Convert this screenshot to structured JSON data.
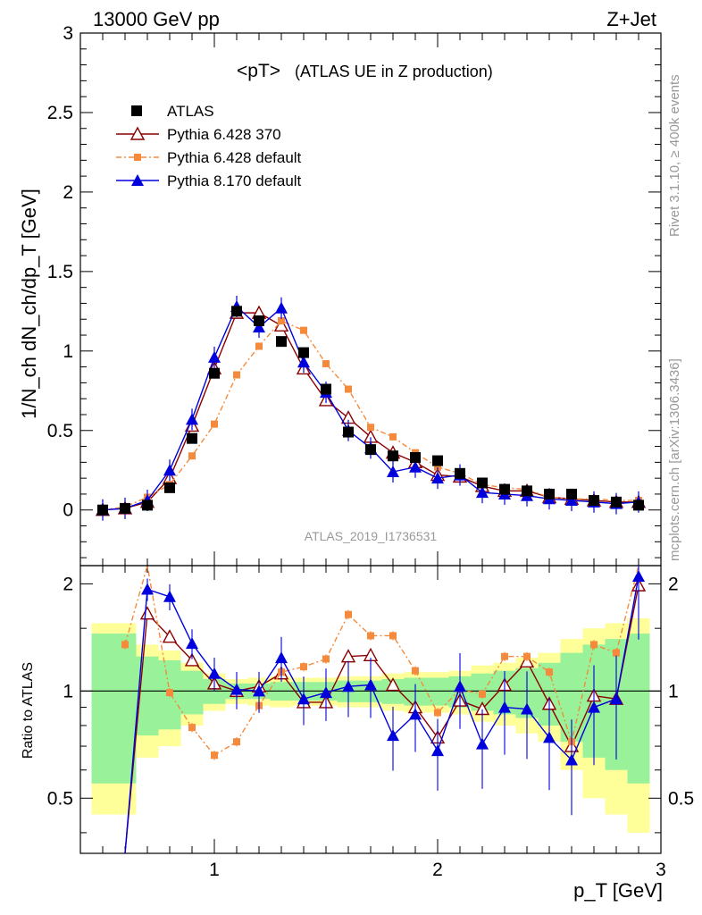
{
  "header": {
    "left": "13000 GeV pp",
    "right": "Z+Jet"
  },
  "side_labels": {
    "rivet": "Rivet 3.1.10, ≥ 400k events",
    "mcplots": "mcplots.cern.ch [arXiv:1306.3436]"
  },
  "colors": {
    "atlas": "#000000",
    "p6_370": "#8b0000",
    "p6_def": "#f58a3c",
    "p8": "#0000dd",
    "band_green": "#99f299",
    "band_yellow": "#ffff99"
  },
  "chart_data": [
    {
      "type": "line",
      "title_main": "<pT>",
      "title_sub": "(ATLAS UE in Z production)",
      "ylabel": "1/N_ch dN_ch/dp_T [GeV]",
      "ylim": [
        -0.35,
        3.0
      ],
      "yticks": [
        0,
        0.5,
        1,
        1.5,
        2,
        2.5,
        3
      ],
      "xlim": [
        0.4,
        3.0
      ],
      "analysis_id": "ATLAS_2019_I1736531",
      "x": [
        0.5,
        0.6,
        0.7,
        0.8,
        0.9,
        1.0,
        1.1,
        1.2,
        1.3,
        1.4,
        1.5,
        1.6,
        1.7,
        1.8,
        1.9,
        2.0,
        2.1,
        2.2,
        2.3,
        2.4,
        2.5,
        2.6,
        2.7,
        2.8,
        2.9
      ],
      "series": [
        {
          "name": "ATLAS",
          "marker": "square",
          "values": [
            0.0,
            0.01,
            0.03,
            0.14,
            0.45,
            0.86,
            1.25,
            1.19,
            1.06,
            0.99,
            0.76,
            0.49,
            0.38,
            0.34,
            0.33,
            0.31,
            0.23,
            0.17,
            0.13,
            0.12,
            0.1,
            0.1,
            0.06,
            0.05,
            0.03
          ]
        },
        {
          "name": "Pythia 6.428 370",
          "marker": "open-triangle",
          "values": [
            0.0,
            0.01,
            0.05,
            0.2,
            0.53,
            0.89,
            1.24,
            1.24,
            1.16,
            0.89,
            0.69,
            0.58,
            0.46,
            0.36,
            0.3,
            0.22,
            0.21,
            0.15,
            0.12,
            0.12,
            0.08,
            0.07,
            0.06,
            0.05,
            0.05
          ]
        },
        {
          "name": "Pythia 6.428 default",
          "marker": "filled-square-small",
          "values": [
            0.0,
            0.02,
            0.08,
            0.16,
            0.34,
            0.54,
            0.85,
            1.03,
            1.19,
            1.13,
            0.92,
            0.76,
            0.52,
            0.46,
            0.36,
            0.27,
            0.23,
            0.16,
            0.14,
            0.13,
            0.08,
            0.07,
            0.07,
            0.06,
            0.06
          ]
        },
        {
          "name": "Pythia 8.170 default",
          "marker": "filled-triangle",
          "values": [
            0.0,
            0.01,
            0.06,
            0.25,
            0.57,
            0.96,
            1.28,
            1.15,
            1.27,
            0.93,
            0.74,
            0.5,
            0.39,
            0.24,
            0.27,
            0.2,
            0.22,
            0.11,
            0.1,
            0.09,
            0.07,
            0.06,
            0.05,
            0.04,
            0.05
          ]
        }
      ]
    },
    {
      "type": "line",
      "ylabel": "Ratio to ATLAS",
      "ylim": [
        0.35,
        2.25
      ],
      "yticks": [
        0.5,
        1,
        2
      ],
      "xlim": [
        0.4,
        3.0
      ],
      "xticks": [
        1,
        2,
        3
      ],
      "xlabel": "p_T [GeV]",
      "x": [
        0.6,
        0.7,
        0.8,
        0.9,
        1.0,
        1.1,
        1.2,
        1.3,
        1.4,
        1.5,
        1.6,
        1.7,
        1.8,
        1.9,
        2.0,
        2.1,
        2.2,
        2.3,
        2.4,
        2.5,
        2.6,
        2.7,
        2.8,
        2.9
      ],
      "series": [
        {
          "name": "Pythia 6.428 370",
          "values": [
            0.3,
            1.65,
            1.42,
            1.22,
            1.05,
            1.0,
            1.03,
            1.12,
            0.93,
            0.93,
            1.25,
            1.26,
            1.04,
            0.9,
            0.74,
            0.94,
            0.89,
            1.04,
            1.21,
            0.92,
            0.7,
            0.97,
            0.95,
            1.98
          ]
        },
        {
          "name": "Pythia 6.428 default",
          "values": [
            1.35,
            2.25,
            0.99,
            0.79,
            0.66,
            0.72,
            0.91,
            1.13,
            1.17,
            1.23,
            1.64,
            1.43,
            1.43,
            1.14,
            0.87,
            1.01,
            0.98,
            1.25,
            1.25,
            1.13,
            0.72,
            1.35,
            1.28,
            2.25
          ]
        },
        {
          "name": "Pythia 8.170 default",
          "values": [
            0.3,
            1.93,
            1.84,
            1.36,
            1.12,
            1.01,
            1.0,
            1.24,
            0.95,
            0.99,
            1.03,
            1.04,
            0.75,
            0.86,
            0.68,
            1.03,
            0.71,
            0.9,
            0.89,
            0.74,
            0.64,
            0.9,
            0.95,
            2.1
          ]
        }
      ]
    }
  ]
}
